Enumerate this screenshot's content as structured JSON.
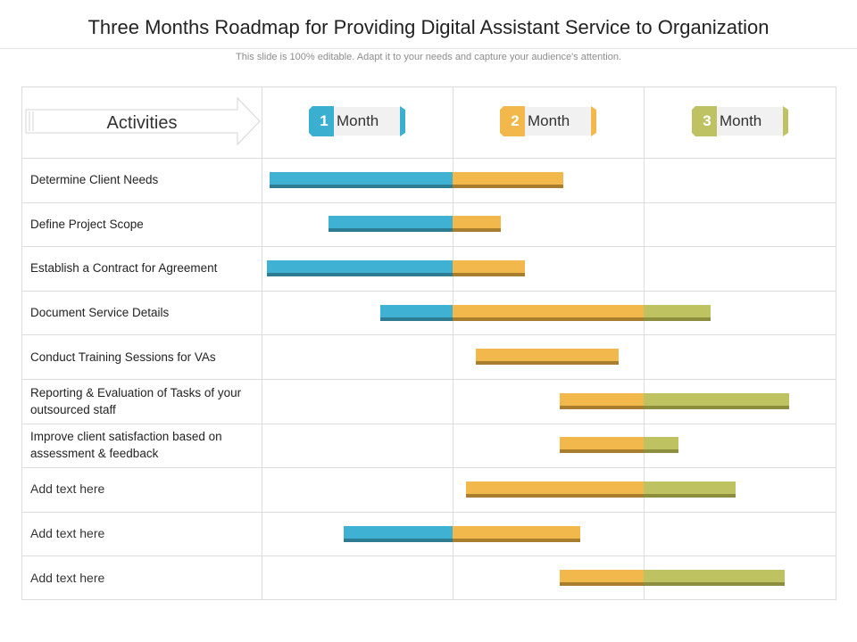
{
  "header": {
    "title": "Three Months Roadmap for Providing Digital Assistant Service to Organization",
    "subtitle": "This slide is 100% editable. Adapt it to your needs and capture your audience's attention."
  },
  "columns": {
    "activities_label": "Activities",
    "months": [
      {
        "number": "1",
        "label": "Month",
        "color": "#3aafd0",
        "accent": "#2b8aa6"
      },
      {
        "number": "2",
        "label": "Month",
        "color": "#f2b84b",
        "accent": "#c99331"
      },
      {
        "number": "3",
        "label": "Month",
        "color": "#bfc263",
        "accent": "#979a42"
      }
    ]
  },
  "colors": {
    "month1": "#3fb1d3",
    "month1_shade": "#2d7c92",
    "month2": "#f2b84b",
    "month2_shade": "#a97d2e",
    "month3": "#bec260",
    "month3_shade": "#8c8e3d",
    "grid": "#dcdcdc"
  },
  "chart_data": {
    "type": "gantt",
    "time_unit": "months",
    "time_range": [
      0,
      3
    ],
    "tasks": [
      {
        "label": "Determine Client Needs",
        "start": 0.04,
        "end": 1.58
      },
      {
        "label": "Define Project Scope",
        "start": 0.35,
        "end": 1.25
      },
      {
        "label": "Establish a Contract for Agreement",
        "start": 0.03,
        "end": 1.38
      },
      {
        "label": "Document Service Details",
        "start": 0.62,
        "end": 2.35
      },
      {
        "label": "Conduct Training Sessions for VAs",
        "start": 1.12,
        "end": 1.87
      },
      {
        "label": "Reporting & Evaluation of Tasks of your outsourced staff",
        "start": 1.56,
        "end": 2.76
      },
      {
        "label": "Improve  client satisfaction based on assessment & feedback",
        "start": 1.56,
        "end": 2.18
      },
      {
        "label": "Add text here",
        "start": 1.07,
        "end": 2.48,
        "placeholder": true
      },
      {
        "label": "Add text here",
        "start": 0.43,
        "end": 1.67,
        "placeholder": true
      },
      {
        "label": "Add text here",
        "start": 1.56,
        "end": 2.74,
        "placeholder": true
      }
    ]
  }
}
